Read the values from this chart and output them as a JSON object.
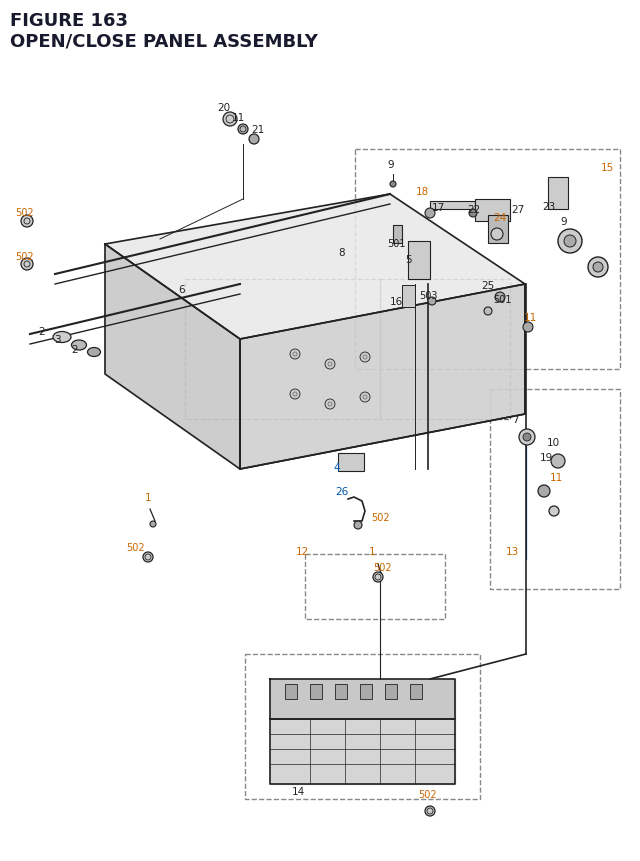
{
  "title_line1": "FIGURE 163",
  "title_line2": "OPEN/CLOSE PANEL ASSEMBLY",
  "title_color": "#1a1a2e",
  "title_fontsize": 13,
  "bg_color": "#ffffff",
  "label_color_black": "#222222",
  "label_color_orange": "#cc6600",
  "label_color_blue": "#0055aa",
  "label_color_teal": "#007777",
  "fig_width": 6.4,
  "fig_height": 8.62,
  "dpi": 100
}
